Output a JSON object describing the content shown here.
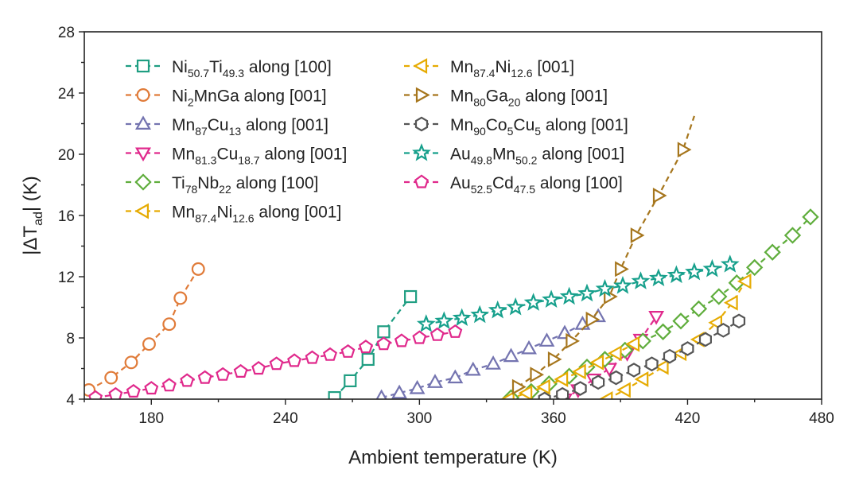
{
  "chart_data": {
    "type": "scatter",
    "xlabel": "Ambient temperature (K)",
    "ylabel": {
      "base": "|ΔT",
      "sub": "ad",
      "rest": "| (K)"
    },
    "xlim": [
      150,
      480
    ],
    "ylim": [
      4,
      28
    ],
    "xticks": [
      180,
      240,
      300,
      360,
      420,
      480
    ],
    "yticks": [
      4,
      8,
      12,
      16,
      20,
      24,
      28
    ],
    "grid": false,
    "legend_placement": "top-left",
    "series": [
      {
        "name": [
          {
            "t": "Ni"
          },
          {
            "t": "50.7",
            "sub": true
          },
          {
            "t": "Ti"
          },
          {
            "t": "49.3",
            "sub": true
          },
          {
            "t": " along [100]"
          }
        ],
        "color": "#1f9e82",
        "marker": "square",
        "points": [
          [
            262,
            4.1
          ],
          [
            269,
            5.2
          ],
          [
            277,
            6.6
          ],
          [
            284,
            8.4
          ],
          [
            296,
            10.7
          ]
        ]
      },
      {
        "name": [
          {
            "t": "Ni"
          },
          {
            "t": "2",
            "sub": true
          },
          {
            "t": "MnGa along [001]"
          }
        ],
        "color": "#e07b39",
        "marker": "circle",
        "points": [
          [
            152,
            4.6
          ],
          [
            162,
            5.4
          ],
          [
            171,
            6.4
          ],
          [
            179,
            7.6
          ],
          [
            188,
            8.9
          ],
          [
            193,
            10.6
          ],
          [
            201,
            12.5
          ]
        ]
      },
      {
        "name": [
          {
            "t": "Mn"
          },
          {
            "t": "87",
            "sub": true
          },
          {
            "t": "Cu"
          },
          {
            "t": "13",
            "sub": true
          },
          {
            "t": " along [001]"
          }
        ],
        "color": "#7474b0",
        "marker": "triangle-up",
        "points": [
          [
            283,
            4.1
          ],
          [
            291,
            4.4
          ],
          [
            299,
            4.7
          ],
          [
            307,
            5.1
          ],
          [
            316,
            5.4
          ],
          [
            324,
            5.9
          ],
          [
            333,
            6.3
          ],
          [
            341,
            6.8
          ],
          [
            349,
            7.3
          ],
          [
            357,
            7.8
          ],
          [
            365,
            8.3
          ],
          [
            373,
            8.9
          ],
          [
            380,
            9.4
          ]
        ]
      },
      {
        "name": [
          {
            "t": "Mn"
          },
          {
            "t": "81.3",
            "sub": true
          },
          {
            "t": "Cu"
          },
          {
            "t": "18.7",
            "sub": true
          },
          {
            "t": " along [001]"
          }
        ],
        "color": "#e0298c",
        "marker": "triangle-down",
        "points": [
          [
            365,
            4.0
          ],
          [
            371,
            4.6
          ],
          [
            378,
            5.3
          ],
          [
            385,
            6.0
          ],
          [
            393,
            7.0
          ],
          [
            399,
            7.9
          ],
          [
            406,
            9.4
          ]
        ]
      },
      {
        "name": [
          {
            "t": "Ti"
          },
          {
            "t": "78",
            "sub": true
          },
          {
            "t": "Nb"
          },
          {
            "t": "22",
            "sub": true
          },
          {
            "t": " along [100]"
          }
        ],
        "color": "#5fad3c",
        "marker": "diamond",
        "points": [
          [
            341,
            4.1
          ],
          [
            350,
            4.5
          ],
          [
            358,
            5.0
          ],
          [
            367,
            5.5
          ],
          [
            375,
            6.1
          ],
          [
            383,
            6.6
          ],
          [
            392,
            7.2
          ],
          [
            400,
            7.8
          ],
          [
            409,
            8.4
          ],
          [
            417,
            9.1
          ],
          [
            425,
            9.9
          ],
          [
            434,
            10.7
          ],
          [
            442,
            11.6
          ],
          [
            450,
            12.6
          ],
          [
            458,
            13.6
          ],
          [
            467,
            14.7
          ],
          [
            475,
            15.9
          ]
        ]
      },
      {
        "name": [
          {
            "t": "Mn"
          },
          {
            "t": "87.4",
            "sub": true
          },
          {
            "t": "Ni"
          },
          {
            "t": "12.6",
            "sub": true
          },
          {
            "t": " along [001]"
          }
        ],
        "color": "#e6ab02",
        "marker": "triangle-left",
        "points": [
          [
            384,
            4.0
          ],
          [
            392,
            4.6
          ],
          [
            400,
            5.3
          ],
          [
            409,
            6.1
          ],
          [
            417,
            7.0
          ],
          [
            425,
            7.9
          ],
          [
            433,
            9.0
          ],
          [
            440,
            10.3
          ],
          [
            446,
            11.7
          ]
        ]
      },
      {
        "name": [
          {
            "t": "Mn"
          },
          {
            "t": "87.4",
            "sub": true
          },
          {
            "t": "Ni"
          },
          {
            "t": "12.6",
            "sub": true
          },
          {
            "t": " [001]"
          }
        ],
        "color": "#e6ab02",
        "marker": "triangle-left",
        "points": [
          [
            340,
            4.0
          ],
          [
            348,
            4.4
          ],
          [
            356,
            4.8
          ],
          [
            364,
            5.3
          ],
          [
            372,
            5.8
          ],
          [
            380,
            6.4
          ],
          [
            388,
            7.0
          ],
          [
            396,
            7.6
          ]
        ]
      },
      {
        "name": [
          {
            "t": "Mn"
          },
          {
            "t": "80",
            "sub": true
          },
          {
            "t": "Ga"
          },
          {
            "t": "20",
            "sub": true
          },
          {
            "t": " along [001]"
          }
        ],
        "color": "#a6761d",
        "marker": "triangle-right",
        "points": [
          [
            344,
            4.8
          ],
          [
            352,
            5.6
          ],
          [
            360,
            6.6
          ],
          [
            368,
            7.8
          ],
          [
            377,
            9.2
          ],
          [
            385,
            10.7
          ],
          [
            390,
            12.5
          ],
          [
            397,
            14.7
          ],
          [
            407,
            17.3
          ],
          [
            418,
            20.3
          ]
        ],
        "trend_end": [
          423,
          22.5
        ]
      },
      {
        "name": [
          {
            "t": "Mn"
          },
          {
            "t": "90",
            "sub": true
          },
          {
            "t": "Co"
          },
          {
            "t": "5",
            "sub": true
          },
          {
            "t": "Cu"
          },
          {
            "t": "5",
            "sub": true
          },
          {
            "t": " along [001]"
          }
        ],
        "color": "#555555",
        "marker": "hexagon",
        "points": [
          [
            356,
            4.0
          ],
          [
            364,
            4.3
          ],
          [
            372,
            4.7
          ],
          [
            380,
            5.1
          ],
          [
            388,
            5.4
          ],
          [
            396,
            5.9
          ],
          [
            404,
            6.3
          ],
          [
            412,
            6.8
          ],
          [
            420,
            7.3
          ],
          [
            428,
            7.9
          ],
          [
            436,
            8.5
          ],
          [
            443,
            9.1
          ]
        ]
      },
      {
        "name": [
          {
            "t": "Au"
          },
          {
            "t": "49.8",
            "sub": true
          },
          {
            "t": "Mn"
          },
          {
            "t": "50.2",
            "sub": true
          },
          {
            "t": " along [001]"
          }
        ],
        "color": "#17a08c",
        "marker": "star",
        "points": [
          [
            303,
            8.9
          ],
          [
            311,
            9.1
          ],
          [
            319,
            9.3
          ],
          [
            327,
            9.5
          ],
          [
            335,
            9.8
          ],
          [
            343,
            10.0
          ],
          [
            351,
            10.3
          ],
          [
            359,
            10.5
          ],
          [
            367,
            10.7
          ],
          [
            375,
            10.9
          ],
          [
            383,
            11.2
          ],
          [
            391,
            11.4
          ],
          [
            399,
            11.7
          ],
          [
            407,
            11.9
          ],
          [
            415,
            12.1
          ],
          [
            423,
            12.3
          ],
          [
            431,
            12.5
          ],
          [
            439,
            12.8
          ]
        ]
      },
      {
        "name": [
          {
            "t": "Au"
          },
          {
            "t": "52.5",
            "sub": true
          },
          {
            "t": "Cd"
          },
          {
            "t": "47.5",
            "sub": true
          },
          {
            "t": " along [100]"
          }
        ],
        "color": "#e0298c",
        "marker": "pentagon",
        "points": [
          [
            155,
            4.1
          ],
          [
            164,
            4.3
          ],
          [
            172,
            4.5
          ],
          [
            180,
            4.7
          ],
          [
            188,
            4.9
          ],
          [
            196,
            5.2
          ],
          [
            204,
            5.4
          ],
          [
            212,
            5.6
          ],
          [
            220,
            5.8
          ],
          [
            228,
            6.0
          ],
          [
            236,
            6.3
          ],
          [
            244,
            6.5
          ],
          [
            252,
            6.7
          ],
          [
            260,
            6.9
          ],
          [
            268,
            7.1
          ],
          [
            276,
            7.4
          ],
          [
            284,
            7.6
          ],
          [
            292,
            7.8
          ],
          [
            300,
            8.0
          ],
          [
            308,
            8.2
          ],
          [
            316,
            8.4
          ]
        ]
      }
    ],
    "legend_order": [
      0,
      1,
      2,
      3,
      4,
      5,
      6,
      7,
      8,
      9,
      10
    ]
  }
}
